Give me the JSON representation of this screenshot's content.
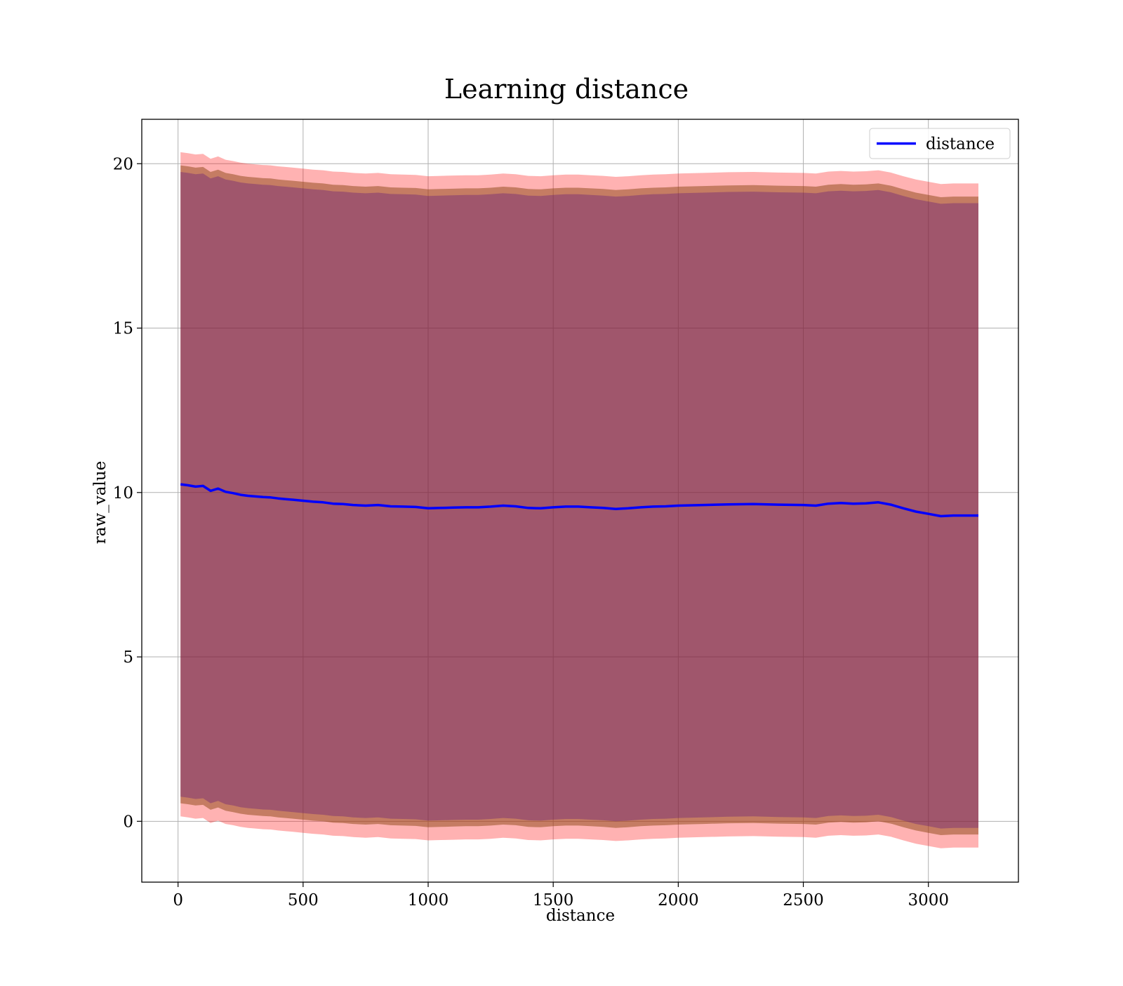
{
  "chart_data": {
    "type": "area",
    "title": "Learning distance",
    "xlabel": "distance",
    "ylabel": "raw_value",
    "xlim": [
      -145,
      3360
    ],
    "ylim": [
      -1.85,
      21.35
    ],
    "x_ticks": [
      0,
      500,
      1000,
      1500,
      2000,
      2500,
      3000
    ],
    "y_ticks": [
      0,
      5,
      10,
      15,
      20
    ],
    "grid": true,
    "legend": {
      "position": "top-right",
      "entries": [
        "distance"
      ]
    },
    "colors": {
      "line": "#0000ff",
      "outer_band": "#ff0000",
      "middle_band": "#8b4513",
      "inner_band": "#4b0082",
      "grid": "#b0b0b0"
    },
    "series": [
      {
        "name": "distance",
        "x": [
          10,
          40,
          70,
          100,
          130,
          160,
          190,
          220,
          250,
          280,
          310,
          340,
          370,
          400,
          430,
          460,
          500,
          540,
          580,
          620,
          660,
          700,
          750,
          800,
          850,
          900,
          950,
          1000,
          1050,
          1100,
          1150,
          1200,
          1250,
          1300,
          1350,
          1400,
          1450,
          1500,
          1550,
          1600,
          1650,
          1700,
          1750,
          1800,
          1850,
          1900,
          1950,
          2000,
          2100,
          2200,
          2300,
          2400,
          2500,
          2550,
          2600,
          2650,
          2700,
          2750,
          2800,
          2850,
          2900,
          2950,
          3000,
          3050,
          3100,
          3150,
          3200
        ],
        "y": [
          10.25,
          10.22,
          10.18,
          10.2,
          10.05,
          10.12,
          10.02,
          9.98,
          9.93,
          9.9,
          9.88,
          9.86,
          9.85,
          9.82,
          9.8,
          9.78,
          9.75,
          9.72,
          9.7,
          9.66,
          9.65,
          9.62,
          9.6,
          9.62,
          9.58,
          9.57,
          9.56,
          9.52,
          9.53,
          9.54,
          9.55,
          9.55,
          9.57,
          9.6,
          9.58,
          9.53,
          9.52,
          9.55,
          9.57,
          9.57,
          9.55,
          9.53,
          9.5,
          9.52,
          9.55,
          9.57,
          9.58,
          9.6,
          9.62,
          9.64,
          9.65,
          9.63,
          9.62,
          9.6,
          9.66,
          9.68,
          9.66,
          9.67,
          9.7,
          9.63,
          9.52,
          9.42,
          9.35,
          9.28,
          9.3,
          9.3,
          9.3
        ]
      }
    ],
    "bands": [
      {
        "name": "outer",
        "half_width": 10.1
      },
      {
        "name": "middle",
        "half_width": 9.7
      },
      {
        "name": "inner",
        "half_width": 9.5
      }
    ]
  }
}
